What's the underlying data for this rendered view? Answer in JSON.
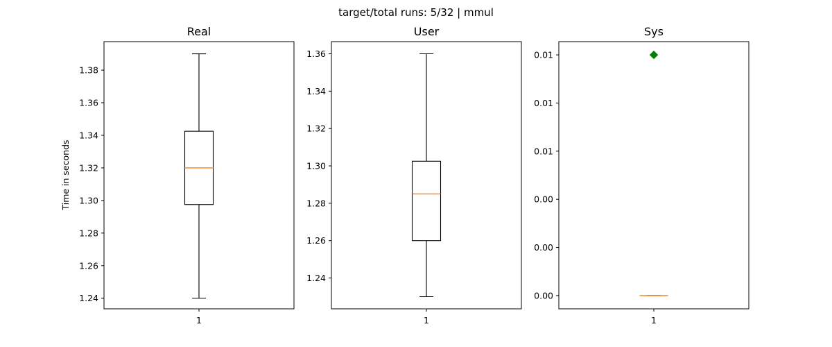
{
  "chart_data": {
    "type": "boxplot",
    "suptitle": "target/total runs: 5/32 | mmul",
    "ylabel": "Time in seconds",
    "colors": {
      "median": "#ff7f0e",
      "box": "#000000",
      "flier": "#008000"
    },
    "panels": [
      {
        "title": "Real",
        "category": "1",
        "ylim": [
          1.2335,
          1.3975
        ],
        "yticks": [
          1.24,
          1.26,
          1.28,
          1.3,
          1.32,
          1.34,
          1.36,
          1.38
        ],
        "ytick_labels": [
          "1.24",
          "1.26",
          "1.28",
          "1.30",
          "1.32",
          "1.34",
          "1.36",
          "1.38"
        ],
        "whisker_low": 1.24,
        "q1": 1.2975,
        "median": 1.32,
        "q3": 1.3425,
        "whisker_high": 1.39,
        "fliers": []
      },
      {
        "title": "User",
        "category": "1",
        "ylim": [
          1.2235,
          1.3665
        ],
        "yticks": [
          1.24,
          1.26,
          1.28,
          1.3,
          1.32,
          1.34,
          1.36
        ],
        "ytick_labels": [
          "1.24",
          "1.26",
          "1.28",
          "1.30",
          "1.32",
          "1.34",
          "1.36"
        ],
        "whisker_low": 1.23,
        "q1": 1.26,
        "median": 1.285,
        "q3": 1.3025,
        "whisker_high": 1.36,
        "fliers": []
      },
      {
        "title": "Sys",
        "category": "1",
        "ylim": [
          -0.00055,
          0.01055
        ],
        "yticks": [
          0.0,
          0.002,
          0.004,
          0.006,
          0.008,
          0.01
        ],
        "ytick_labels": [
          "0.00",
          "0.00",
          "0.00",
          "0.01",
          "0.01",
          "0.01"
        ],
        "whisker_low": 0.0,
        "q1": 0.0,
        "median": 0.0,
        "q3": 0.0,
        "whisker_high": 0.0,
        "fliers": [
          0.01
        ]
      }
    ]
  }
}
